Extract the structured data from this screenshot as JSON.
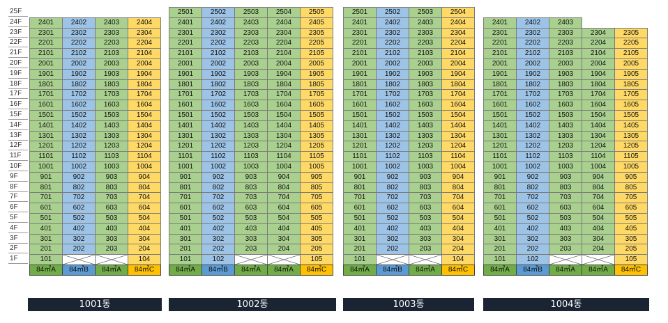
{
  "colors": {
    "A": "#a9d08e",
    "B": "#9dc3e6",
    "C": "#ffd966",
    "type_A": "#70ad47",
    "type_B": "#5b9bd5",
    "type_C": "#ffc000"
  },
  "floors": [
    "25F",
    "24F",
    "23F",
    "22F",
    "21F",
    "20F",
    "19F",
    "18F",
    "17F",
    "16F",
    "15F",
    "14F",
    "13F",
    "12F",
    "11F",
    "10F",
    "9F",
    "8F",
    "7F",
    "6F",
    "5F",
    "4F",
    "3F",
    "2F",
    "1F"
  ],
  "buildings": [
    {
      "label": "1001동",
      "types": [
        "84㎡A",
        "84㎡B",
        "84㎡A",
        "84㎡C"
      ],
      "top_floor": 24,
      "partial_top": null,
      "first_floor": [
        "101",
        null,
        null,
        "104"
      ]
    },
    {
      "label": "1002동",
      "types": [
        "84㎡A",
        "84㎡B",
        "84㎡A",
        "84㎡A",
        "84㎡C"
      ],
      "top_floor": 25,
      "partial_top": null,
      "first_floor": [
        "101",
        "102",
        null,
        null,
        "105"
      ]
    },
    {
      "label": "1003동",
      "types": [
        "84㎡A",
        "84㎡B",
        "84㎡A",
        "84㎡C"
      ],
      "top_floor": 25,
      "partial_top": null,
      "first_floor": [
        "101",
        null,
        null,
        "104"
      ]
    },
    {
      "label": "1004동",
      "types": [
        "84㎡A",
        "84㎡B",
        "84㎡A",
        "84㎡A",
        "84㎡C"
      ],
      "top_floor": 23,
      "partial_top": {
        "floor": 24,
        "units": 3
      },
      "first_floor": [
        "101",
        "102",
        null,
        null,
        "105"
      ]
    }
  ]
}
